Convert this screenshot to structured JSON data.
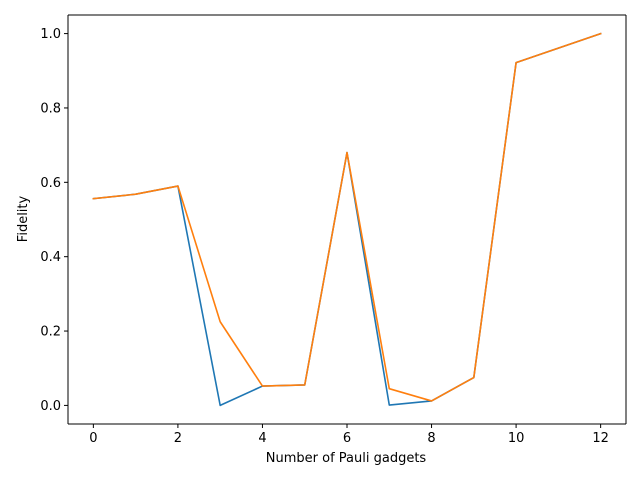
{
  "chart_data": {
    "type": "line",
    "title": "",
    "xlabel": "Number of Pauli gadgets",
    "ylabel": "Fidelity",
    "xlim": [
      -0.6,
      12.6
    ],
    "ylim": [
      -0.05,
      1.05
    ],
    "xticks": [
      0,
      2,
      4,
      6,
      8,
      10,
      12
    ],
    "yticks": [
      0.0,
      0.2,
      0.4,
      0.6,
      0.8,
      1.0
    ],
    "xtick_labels": [
      "0",
      "2",
      "4",
      "6",
      "8",
      "10",
      "12"
    ],
    "ytick_labels": [
      "0.0",
      "0.2",
      "0.4",
      "0.6",
      "0.8",
      "1.0"
    ],
    "grid": false,
    "legend": "none",
    "series": [
      {
        "color": "#1f77b4",
        "x": [
          0,
          1,
          2,
          3,
          4,
          5,
          6,
          7,
          8,
          9,
          10,
          12
        ],
        "y": [
          0.556,
          0.568,
          0.59,
          0.0,
          0.052,
          0.055,
          0.68,
          0.001,
          0.012,
          0.075,
          0.922,
          1.0
        ]
      },
      {
        "color": "#ff7f0e",
        "x": [
          0,
          1,
          2,
          3,
          4,
          5,
          6,
          7,
          8,
          9,
          10,
          12
        ],
        "y": [
          0.556,
          0.568,
          0.59,
          0.225,
          0.052,
          0.055,
          0.68,
          0.045,
          0.012,
          0.075,
          0.922,
          1.0
        ]
      }
    ]
  }
}
